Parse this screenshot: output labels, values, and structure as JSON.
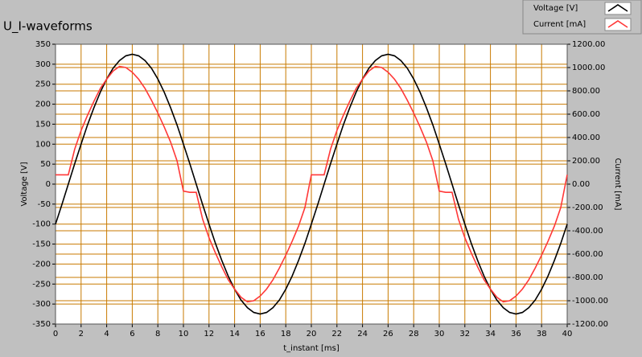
{
  "chart_data": {
    "type": "line",
    "title": "U_I-waveforms",
    "x_label": "t_instant [ms]",
    "y_label": "Voltage [V]",
    "y2_label": "Current [mA]",
    "x": [
      0,
      0.5,
      1,
      1.5,
      2,
      2.5,
      3,
      3.5,
      4,
      4.5,
      5,
      5.5,
      6,
      6.5,
      7,
      7.5,
      8,
      8.5,
      9,
      9.5,
      10,
      10.5,
      11,
      11.5,
      12,
      12.5,
      13,
      13.5,
      14,
      14.5,
      15,
      15.5,
      16,
      16.5,
      17,
      17.5,
      18,
      18.5,
      19,
      19.5,
      20,
      20.5,
      21,
      21.5,
      22,
      22.5,
      23,
      23.5,
      24,
      24.5,
      25,
      25.5,
      26,
      26.5,
      27,
      27.5,
      28,
      28.5,
      29,
      29.5,
      30,
      30.5,
      31,
      31.5,
      32,
      32.5,
      33,
      33.5,
      34,
      34.5,
      35,
      35.5,
      36,
      36.5,
      37,
      37.5,
      38,
      38.5,
      39,
      39.5,
      40
    ],
    "series": [
      {
        "name": "Voltage [V]",
        "color": "#000000",
        "values": [
          -100,
          -51,
          0,
          51,
          100,
          148,
          191,
          230,
          263,
          290,
          309,
          321,
          325,
          321,
          309,
          290,
          263,
          230,
          191,
          148,
          100,
          51,
          0,
          -51,
          -100,
          -148,
          -191,
          -230,
          -263,
          -290,
          -309,
          -321,
          -325,
          -321,
          -309,
          -290,
          -263,
          -230,
          -191,
          -148,
          -100,
          -51,
          0,
          51,
          100,
          148,
          191,
          230,
          263,
          290,
          309,
          321,
          325,
          321,
          309,
          290,
          263,
          230,
          191,
          148,
          100,
          51,
          0,
          -51,
          -100,
          -148,
          -191,
          -230,
          -263,
          -290,
          -309,
          -321,
          -325,
          -321,
          -309,
          -290,
          -263,
          -230,
          -191,
          -148,
          -100
        ]
      },
      {
        "name": "Current [mA]",
        "color": "#ff3838",
        "axis": "y2",
        "values": [
          80,
          80,
          80,
          300,
          460,
          590,
          710,
          820,
          900,
          970,
          1010,
          1000,
          960,
          900,
          820,
          720,
          610,
          490,
          360,
          200,
          -60,
          -70,
          -70,
          -300,
          -460,
          -590,
          -710,
          -820,
          -900,
          -970,
          -1010,
          -1000,
          -960,
          -900,
          -820,
          -720,
          -610,
          -490,
          -360,
          -200,
          80,
          80,
          80,
          300,
          460,
          590,
          710,
          820,
          900,
          970,
          1010,
          1000,
          960,
          900,
          820,
          720,
          610,
          490,
          360,
          200,
          -60,
          -70,
          -70,
          -300,
          -460,
          -590,
          -710,
          -820,
          -900,
          -970,
          -1010,
          -1000,
          -960,
          -900,
          -820,
          -720,
          -610,
          -490,
          -360,
          -200,
          80
        ]
      }
    ],
    "xlim": [
      0,
      40
    ],
    "xticks": [
      0,
      2,
      4,
      6,
      8,
      10,
      12,
      14,
      16,
      18,
      20,
      22,
      24,
      26,
      28,
      30,
      32,
      34,
      36,
      38,
      40
    ],
    "ylim": [
      -350,
      350
    ],
    "yticks": [
      -350,
      -300,
      -250,
      -200,
      -150,
      -100,
      -50,
      0,
      50,
      100,
      150,
      200,
      250,
      300,
      350
    ],
    "y2lim": [
      -1200,
      1200
    ],
    "y2ticks": [
      {
        "value": -1200,
        "label": "-1200.00"
      },
      {
        "value": -1000,
        "label": "-1000.00"
      },
      {
        "value": -800,
        "label": "-800.00"
      },
      {
        "value": -600,
        "label": "-600.00"
      },
      {
        "value": -400,
        "label": "-400.00"
      },
      {
        "value": -200,
        "label": "-200.00"
      },
      {
        "value": 0,
        "label": "0.00"
      },
      {
        "value": 200,
        "label": "200.00"
      },
      {
        "value": 400,
        "label": "400.00"
      },
      {
        "value": 600,
        "label": "600.00"
      },
      {
        "value": 800,
        "label": "800.00"
      },
      {
        "value": 1000,
        "label": "1000.00"
      },
      {
        "value": 1200,
        "label": "1200.00"
      }
    ],
    "grid": true,
    "grid_color": "#c87a00"
  }
}
